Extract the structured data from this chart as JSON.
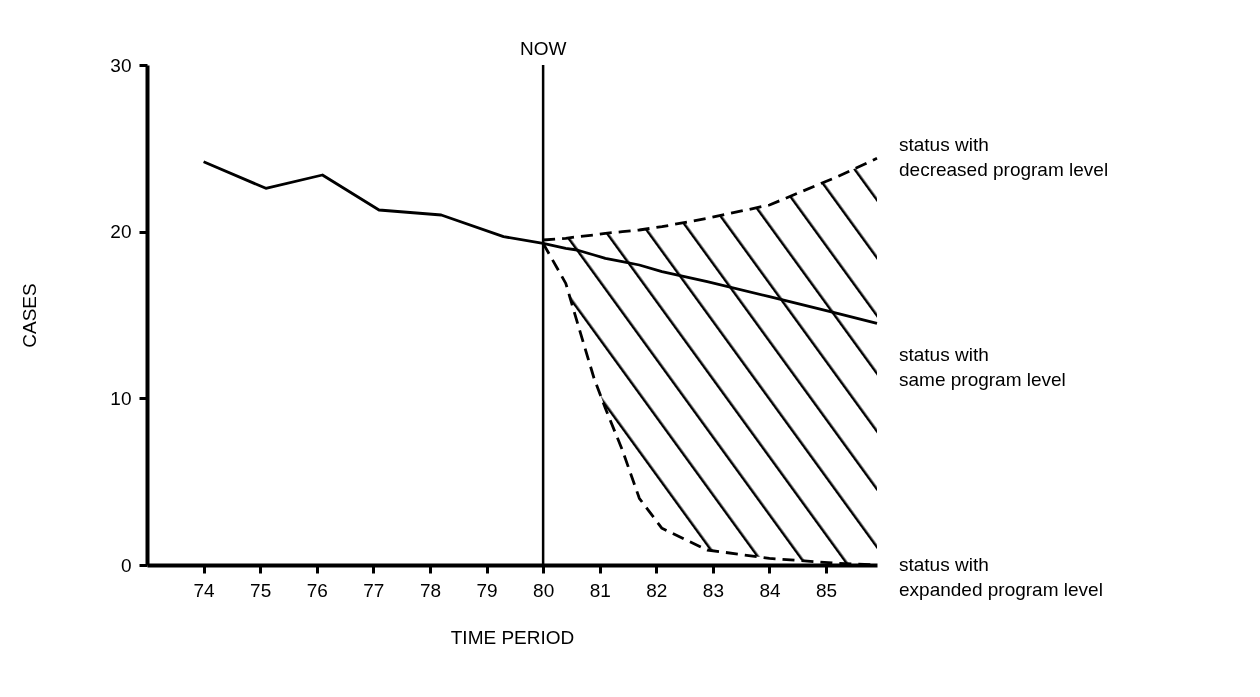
{
  "chart_data": {
    "type": "line",
    "xlabel": "TIME PERIOD",
    "ylabel": "CASES",
    "xlim": [
      73,
      85.9
    ],
    "xticks": [
      74,
      75,
      76,
      77,
      78,
      79,
      80,
      81,
      82,
      83,
      84,
      85
    ],
    "ylim": [
      0,
      30
    ],
    "yticks": [
      0,
      10,
      20,
      30
    ],
    "series": [
      {
        "color": "#000000",
        "x": [
          74,
          75.1,
          76.1,
          77.1,
          78.2,
          79.3,
          80,
          80.4,
          80.6,
          80.9,
          81.1,
          81.4,
          81.7,
          82.1,
          82.9,
          84,
          85.2,
          85.9
        ],
        "values": [
          24.2,
          22.6,
          23.4,
          21.3,
          21.0,
          19.7,
          19.3,
          19.0,
          18.9,
          18.6,
          18.4,
          18.2,
          18.0,
          17.6,
          17.0,
          16.1,
          15.1,
          14.5
        ],
        "lower": [
          null,
          null,
          null,
          null,
          null,
          null,
          19.3,
          16.9,
          14.6,
          11.2,
          9.4,
          6.9,
          4.0,
          2.2,
          0.9,
          0.4,
          0.1,
          0.0
        ],
        "upper": [
          null,
          null,
          null,
          null,
          null,
          null,
          19.5,
          19.6,
          19.7,
          19.8,
          19.9,
          20.0,
          20.1,
          20.3,
          20.8,
          21.6,
          23.3,
          24.4
        ]
      },
      {
        "color": "#000000",
        "line_style": "dashed",
        "x": [
          80,
          80.4,
          80.6,
          80.9,
          81.1,
          81.4,
          81.7,
          82.1,
          82.9,
          84,
          85.2,
          85.9
        ],
        "values": [
          19.5,
          19.6,
          19.7,
          19.8,
          19.9,
          20.0,
          20.1,
          20.3,
          20.8,
          21.6,
          23.3,
          24.4
        ]
      },
      {
        "color": "#000000",
        "line_style": "dashed",
        "x": [
          80,
          80.4,
          80.6,
          80.9,
          81.1,
          81.4,
          81.7,
          82.1,
          82.9,
          84,
          85.2,
          85.9
        ],
        "values": [
          19.3,
          16.9,
          14.6,
          11.2,
          9.4,
          6.9,
          4.0,
          2.2,
          0.9,
          0.4,
          0.1,
          0.0
        ]
      }
    ],
    "ref_lines": [
      {
        "axis": "x",
        "value": 80,
        "label": "NOW",
        "color": "#000000"
      }
    ],
    "annotations": [
      "status with\ndecreased program level",
      "status with\nsame program level",
      "status with\nexpanded program level"
    ]
  }
}
